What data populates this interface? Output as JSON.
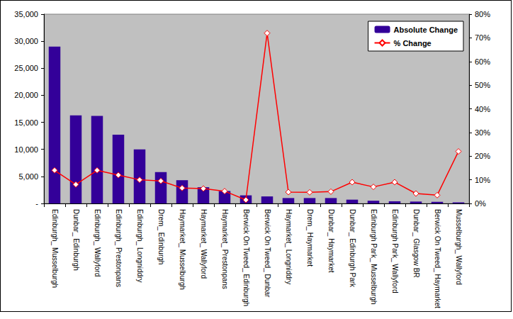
{
  "chart_data": {
    "type": "bar",
    "categories": [
      "Edinburgh_ Musselburgh",
      "Dunbar_ Edinburgh",
      "Edinburgh_ Wallyford",
      "Edinburgh_ Prestonpans",
      "Edinburgh_ Longniddry",
      "Drem_ Edinburgh",
      "Haymarket_ Musselburgh",
      "Haymarket_ Wallyford",
      "Haymarket_ Prestonpans",
      "Berwick On Tweed_ Edinburgh",
      "Berwick On Tweed_ Dunbar",
      "Haymarket_ Longniddry",
      "Drem_ Haymarket",
      "Dunbar_ Haymarket",
      "Dunbar_ Edinburgh Park",
      "Edinburgh Park_ Musselburgh",
      "Edinburgh Park_ Wallyford",
      "Dunbar_ Glasgow BR",
      "Berwick On Tweed_ Haymarket",
      "Musselburgh_ Wallyford"
    ],
    "series": [
      {
        "name": "Absolute Change",
        "type": "bar",
        "color": "#330099",
        "values": [
          29000,
          16300,
          16200,
          12700,
          10000,
          5800,
          4300,
          3000,
          2300,
          1500,
          1300,
          1000,
          1000,
          1000,
          700,
          500,
          400,
          350,
          300,
          200
        ]
      },
      {
        "name": "% Change",
        "type": "line",
        "axis": "y2",
        "color": "#ff0000",
        "marker": "diamond",
        "values": [
          14,
          8,
          14,
          12,
          10,
          9.5,
          6.5,
          6.3,
          5.2,
          1.5,
          72,
          4.8,
          4.7,
          5,
          9,
          7,
          9,
          4.2,
          3.5,
          22
        ]
      }
    ],
    "ylim": [
      0,
      35000
    ],
    "yticks": [
      {
        "value": 0,
        "label": "-"
      },
      {
        "value": 5000,
        "label": "5,000"
      },
      {
        "value": 10000,
        "label": "10,000"
      },
      {
        "value": 15000,
        "label": "15,000"
      },
      {
        "value": 20000,
        "label": "20,000"
      },
      {
        "value": 25000,
        "label": "25,000"
      },
      {
        "value": 30000,
        "label": "30,000"
      },
      {
        "value": 35000,
        "label": "35,000"
      }
    ],
    "y2lim": [
      0,
      80
    ],
    "y2ticks": [
      {
        "value": 0,
        "label": "0%"
      },
      {
        "value": 10,
        "label": "10%"
      },
      {
        "value": 20,
        "label": "20%"
      },
      {
        "value": 30,
        "label": "30%"
      },
      {
        "value": 40,
        "label": "40%"
      },
      {
        "value": 50,
        "label": "50%"
      },
      {
        "value": 60,
        "label": "60%"
      },
      {
        "value": 70,
        "label": "70%"
      },
      {
        "value": 80,
        "label": "80%"
      }
    ],
    "grid": false,
    "legend": "top-right"
  }
}
